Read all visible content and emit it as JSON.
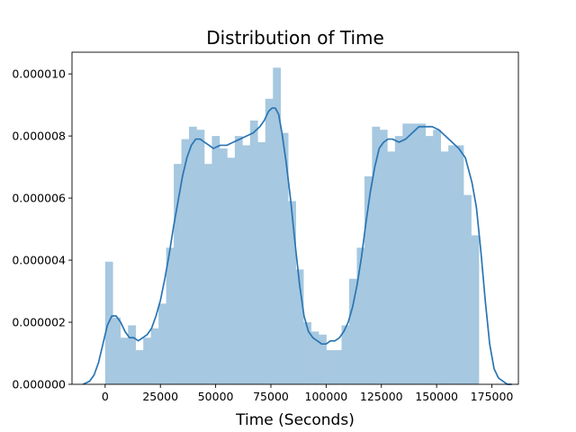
{
  "chart_data": {
    "type": "bar",
    "title": "Distribution of Time",
    "xlabel": "Time (Seconds)",
    "ylabel": "",
    "xlim": [
      -15000,
      187000
    ],
    "ylim": [
      0,
      1.07e-05
    ],
    "grid": false,
    "xticks": [
      {
        "value": 0,
        "label": "0"
      },
      {
        "value": 25000,
        "label": "25000"
      },
      {
        "value": 50000,
        "label": "50000"
      },
      {
        "value": 75000,
        "label": "75000"
      },
      {
        "value": 100000,
        "label": "100000"
      },
      {
        "value": 125000,
        "label": "125000"
      },
      {
        "value": 150000,
        "label": "150000"
      },
      {
        "value": 175000,
        "label": "175000"
      }
    ],
    "yticks": [
      {
        "value": 0,
        "label": "0.000000"
      },
      {
        "value": 2e-06,
        "label": "0.000002"
      },
      {
        "value": 4e-06,
        "label": "0.000004"
      },
      {
        "value": 6e-06,
        "label": "0.000006"
      },
      {
        "value": 8e-06,
        "label": "0.000008"
      },
      {
        "value": 1e-05,
        "label": "0.000010"
      }
    ],
    "histogram": {
      "color": "#a6c8e0",
      "bin_width": 3451,
      "bin_starts": [
        0,
        3451,
        6902,
        10353,
        13804,
        17255,
        20706,
        24157,
        27608,
        31059,
        34510,
        37961,
        41412,
        44863,
        48314,
        51765,
        55216,
        58667,
        62118,
        65569,
        69020,
        72471,
        75922,
        79373,
        82824,
        86275,
        89726,
        93177,
        96628,
        100079,
        103530,
        106981,
        110432,
        113883,
        117334,
        120785,
        124236,
        127687,
        131138,
        134589,
        138040,
        141491,
        144942,
        148393,
        151844,
        155295,
        158746,
        162197,
        165648,
        169099
      ],
      "densities": [
        3.95e-06,
        2.15e-06,
        1.5e-06,
        1.9e-06,
        1.1e-06,
        1.5e-06,
        1.8e-06,
        2.6e-06,
        4.4e-06,
        7.1e-06,
        7.9e-06,
        8.3e-06,
        8.2e-06,
        7.1e-06,
        8e-06,
        7.6e-06,
        7.3e-06,
        8e-06,
        7.7e-06,
        8.5e-06,
        7.8e-06,
        9.2e-06,
        1.02e-05,
        8.1e-06,
        5.9e-06,
        3.7e-06,
        2e-06,
        1.7e-06,
        1.6e-06,
        1.1e-06,
        1.1e-06,
        1.9e-06,
        3.4e-06,
        4.4e-06,
        6.7e-06,
        8.3e-06,
        8.2e-06,
        7.5e-06,
        8e-06,
        8.4e-06,
        8.4e-06,
        8.4e-06,
        8e-06,
        8.2e-06,
        7.5e-06,
        7.7e-06,
        7.7e-06,
        6.1e-06,
        4.8e-06,
        0
      ]
    },
    "kde": {
      "color": "#2a75b3",
      "x": [
        -10000,
        -7000,
        -5000,
        -3000,
        -1000,
        1000,
        3000,
        5000,
        7000,
        9000,
        11000,
        13000,
        15000,
        17000,
        19000,
        21000,
        23000,
        25000,
        27000,
        29000,
        31000,
        33000,
        35000,
        37000,
        39000,
        41000,
        43000,
        45000,
        47000,
        49000,
        52000,
        55000,
        58000,
        61000,
        64000,
        67000,
        70000,
        72000,
        74000,
        75500,
        77000,
        78500,
        80000,
        82000,
        84000,
        86000,
        88000,
        90000,
        92000,
        94000,
        96000,
        98000,
        100000,
        102000,
        104000,
        106000,
        108000,
        110000,
        112000,
        114000,
        116000,
        118000,
        120000,
        122000,
        124000,
        126000,
        128000,
        130000,
        133000,
        136000,
        139000,
        142000,
        145000,
        148000,
        151000,
        154000,
        157000,
        160000,
        163000,
        166000,
        168000,
        170000,
        172000,
        174000,
        176000,
        178000,
        180000,
        182000,
        184000
      ],
      "y": [
        0.0,
        1e-07,
        3e-07,
        7e-07,
        1.3e-06,
        1.9e-06,
        2.2e-06,
        2.2e-06,
        2e-06,
        1.7e-06,
        1.5e-06,
        1.5e-06,
        1.4e-06,
        1.5e-06,
        1.6e-06,
        1.8e-06,
        2.2e-06,
        2.7e-06,
        3.4e-06,
        4.2e-06,
        5.1e-06,
        5.9e-06,
        6.7e-06,
        7.3e-06,
        7.7e-06,
        7.9e-06,
        7.9e-06,
        7.8e-06,
        7.7e-06,
        7.6e-06,
        7.7e-06,
        7.7e-06,
        7.8e-06,
        7.9e-06,
        8e-06,
        8.1e-06,
        8.3e-06,
        8.5e-06,
        8.8e-06,
        8.9e-06,
        8.9e-06,
        8.7e-06,
        8.1e-06,
        7.1e-06,
        5.9e-06,
        4.5e-06,
        3.2e-06,
        2.2e-06,
        1.7e-06,
        1.5e-06,
        1.4e-06,
        1.3e-06,
        1.3e-06,
        1.4e-06,
        1.4e-06,
        1.5e-06,
        1.7e-06,
        2e-06,
        2.5e-06,
        3.2e-06,
        4.1e-06,
        5.2e-06,
        6.2e-06,
        7e-06,
        7.6e-06,
        7.8e-06,
        7.9e-06,
        7.9e-06,
        7.8e-06,
        7.9e-06,
        8.1e-06,
        8.3e-06,
        8.3e-06,
        8.3e-06,
        8.2e-06,
        8e-06,
        7.8e-06,
        7.6e-06,
        7.3e-06,
        6.5e-06,
        5.7e-06,
        4.3e-06,
        2.7e-06,
        1.3e-06,
        5e-07,
        2e-07,
        1e-07,
        0.0,
        0.0
      ]
    }
  }
}
